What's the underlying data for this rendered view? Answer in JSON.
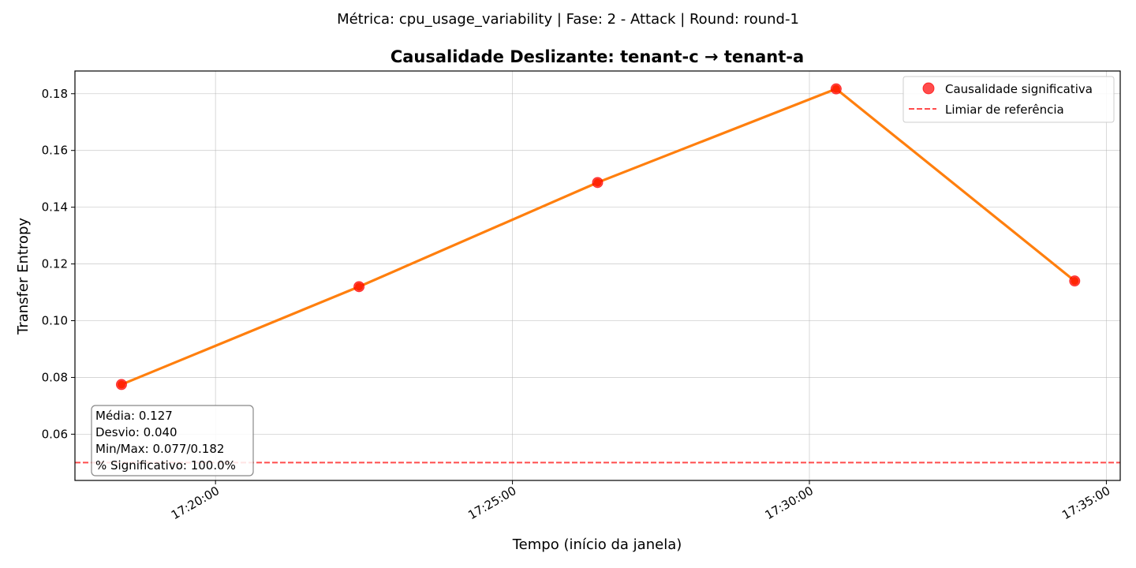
{
  "suptitle": "Métrica: cpu_usage_variability | Fase: 2 - Attack | Round: round-1",
  "chart_data": {
    "type": "line",
    "title": "Causalidade Deslizante: tenant-c → tenant-a",
    "xlabel": "Tempo (início da janela)",
    "ylabel": "Transfer Entropy",
    "x_ticks": [
      "17:20:00",
      "17:25:00",
      "17:30:00",
      "17:35:00"
    ],
    "y_ticks": [
      "0.06",
      "0.08",
      "0.10",
      "0.12",
      "0.14",
      "0.16",
      "0.18"
    ],
    "xlim": [
      "17:17:38",
      "17:35:14"
    ],
    "ylim": [
      0.0437,
      0.188
    ],
    "grid": true,
    "legend_position": "top-right",
    "series": [
      {
        "x": [
          "17:18:25",
          "17:22:25",
          "17:26:26",
          "17:30:27",
          "17:34:28"
        ],
        "values": [
          0.0775,
          0.112,
          0.1487,
          0.1817,
          0.114
        ],
        "color": "#ff7f0e"
      }
    ],
    "significant_points": {
      "name": "Causalidade significativa",
      "color": "#ff0000",
      "x": [
        "17:18:25",
        "17:22:25",
        "17:26:26",
        "17:30:27",
        "17:34:28"
      ],
      "values": [
        0.0775,
        0.112,
        0.1487,
        0.1817,
        0.114
      ]
    },
    "reference_line": {
      "name": "Limiar de referência",
      "value": 0.05,
      "color": "#ff0000"
    },
    "stats_box": [
      "Média: 0.127",
      "Desvio: 0.040",
      "Min/Max: 0.077/0.182",
      "% Significativo: 100.0%"
    ]
  }
}
